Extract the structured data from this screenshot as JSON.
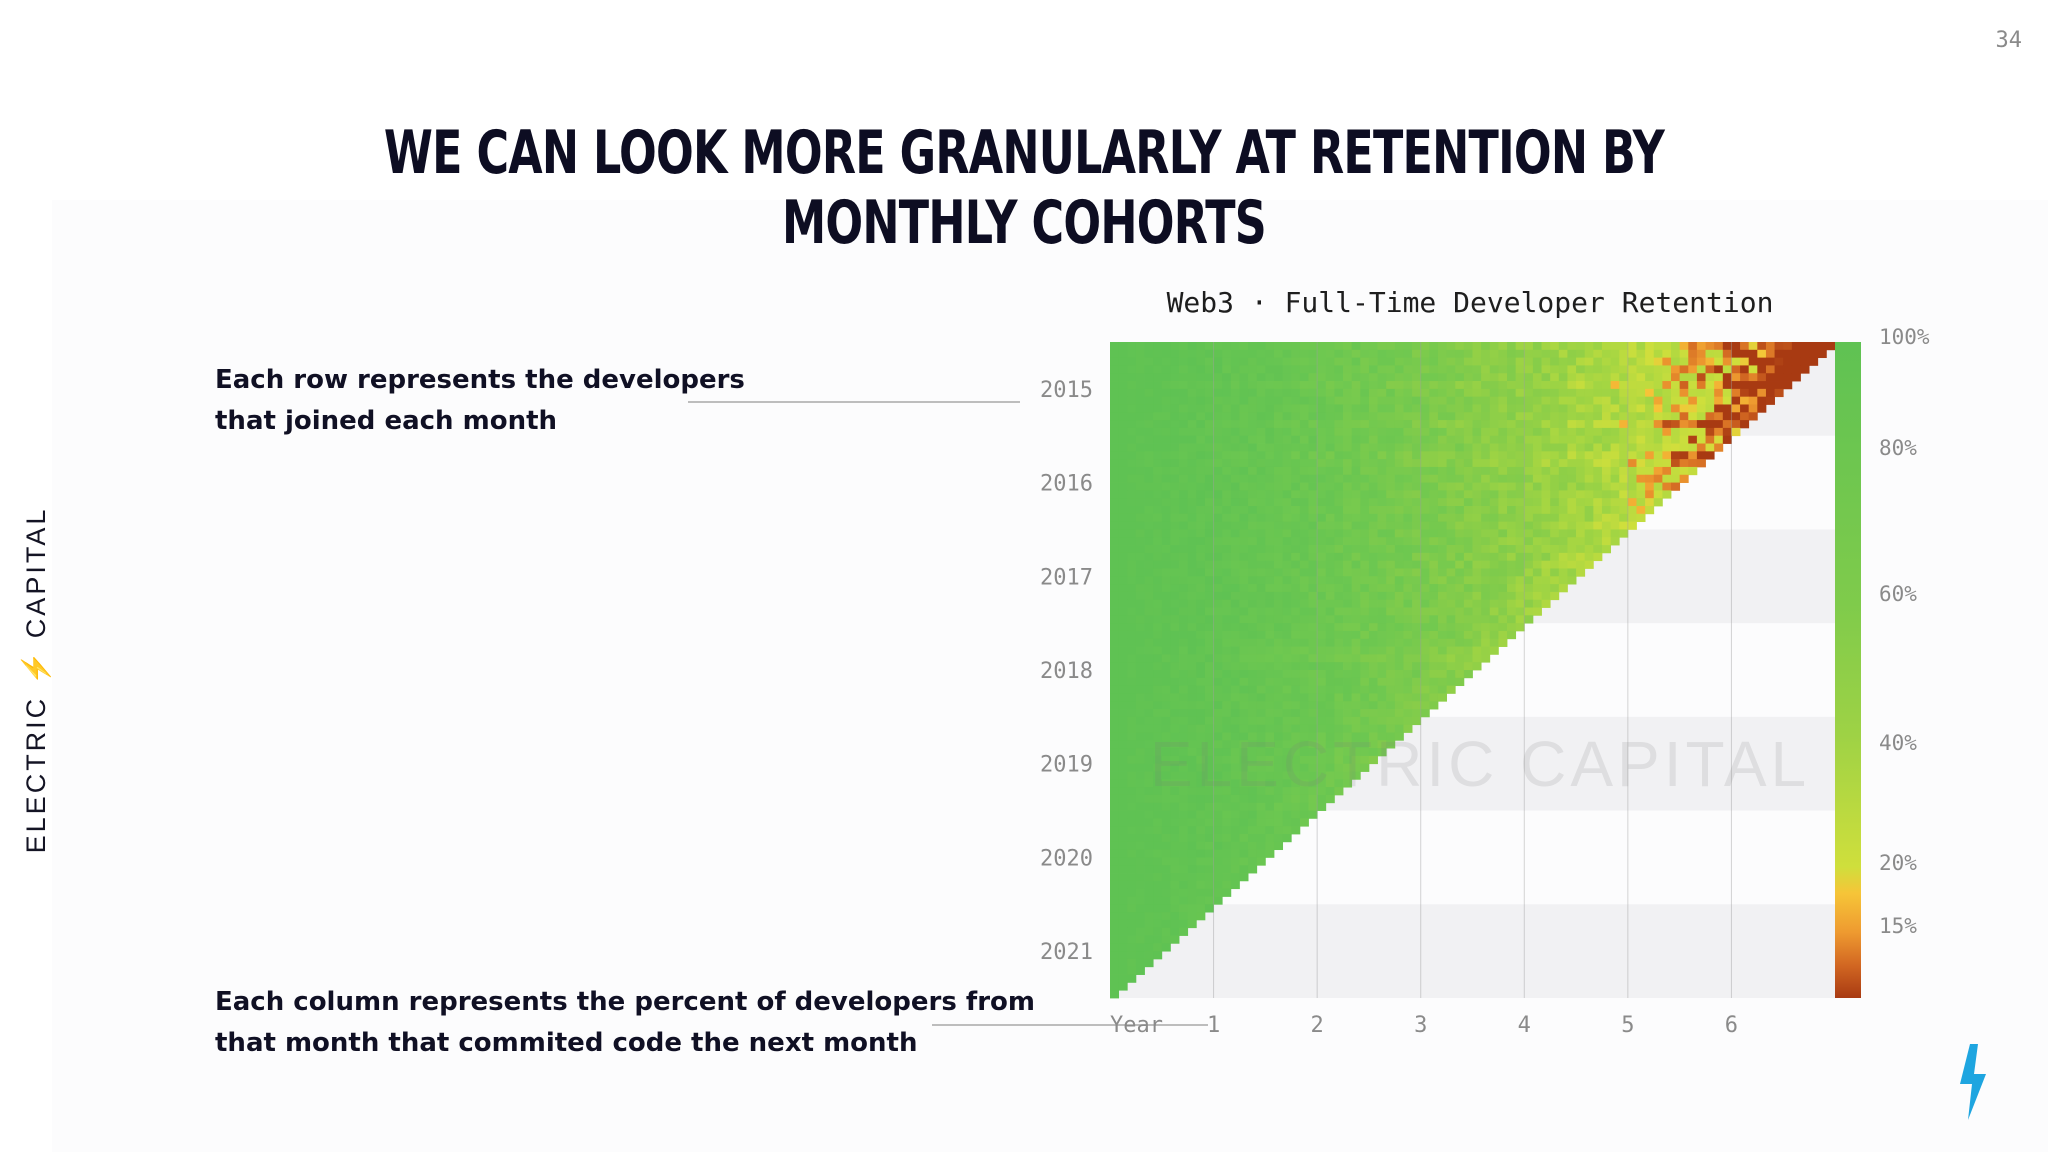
{
  "page": {
    "number": "34",
    "title": "We can look more granularly at retention by monthly cohorts",
    "brand": "ELECTRIC",
    "brand_suffix": "CAPITAL",
    "watermark": "ELECTRIC CAPITAL"
  },
  "annotations": {
    "rows": [
      "Each row represents the developers",
      "that joined each month"
    ],
    "columns": [
      "Each column represents the percent of developers from",
      "that month that commited code the next month"
    ]
  },
  "colors": {
    "high_retention": "#5fc253",
    "mid_retention": "#c9dd3e",
    "low_retention": "#f2a12f",
    "lowest_retention": "#a93a12",
    "title_ink": "#0d0d22",
    "brand_bolt": "#1ea5e0"
  },
  "icons": {
    "bolt": "lightning-bolt-icon"
  },
  "chart_data": {
    "type": "heatmap",
    "title": "Web3 · Full-Time Developer Retention",
    "y_axis": {
      "label": "",
      "tick_labels": [
        "2015",
        "2016",
        "2017",
        "2018",
        "2019",
        "2020",
        "2021"
      ],
      "cohort_start": "2015-01",
      "cohort_end": "2021-12",
      "rows": 84
    },
    "x_axis": {
      "label": "Year",
      "tick_labels": [
        "1",
        "2",
        "3",
        "4",
        "5",
        "6"
      ],
      "months_max": 83
    },
    "colorbar": {
      "tick_labels": [
        "100%",
        "80%",
        "60%",
        "40%",
        "20%",
        "15%"
      ],
      "stops": [
        {
          "value": 100,
          "color": "#5fc253"
        },
        {
          "value": 80,
          "color": "#6fc850"
        },
        {
          "value": 60,
          "color": "#88cd49"
        },
        {
          "value": 40,
          "color": "#a6d642"
        },
        {
          "value": 20,
          "color": "#cfdf3c"
        },
        {
          "value": 18,
          "color": "#f6c538"
        },
        {
          "value": 15,
          "color": "#ee9a30"
        },
        {
          "value": 10,
          "color": "#d26722"
        },
        {
          "value": 5,
          "color": "#a83a12"
        }
      ]
    },
    "values_description": "Triangular cohort matrix: rows are monthly join cohorts (2015 at top to 2021 at bottom), columns are months since joining; percent retained is ~100% near month 0 and declines toward 15% or below after 4-6 years for the oldest cohorts.",
    "grid": true,
    "legend": "colorbar-right"
  }
}
